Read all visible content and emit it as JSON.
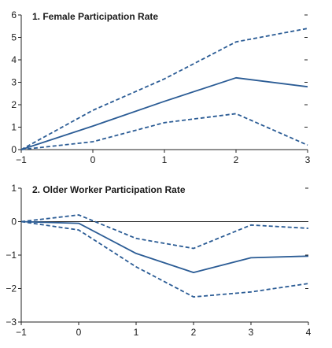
{
  "chart_data": [
    {
      "type": "line",
      "title": "1. Female Participation Rate",
      "xlabel": "",
      "ylabel": "",
      "x": [
        -1,
        0,
        1,
        2,
        3
      ],
      "xlim": [
        -1,
        3
      ],
      "ylim": [
        0,
        6
      ],
      "x_ticks": [
        -1,
        0,
        1,
        2,
        3
      ],
      "y_ticks": [
        0,
        1,
        2,
        3,
        4,
        5,
        6
      ],
      "zero_line": false,
      "grid": false,
      "series": [
        {
          "role": "upper",
          "style": "dashed",
          "values": [
            0,
            1.75,
            3.15,
            4.8,
            5.4
          ]
        },
        {
          "role": "estimate",
          "style": "solid",
          "values": [
            0,
            1.05,
            2.15,
            3.2,
            2.8
          ]
        },
        {
          "role": "lower",
          "style": "dashed",
          "values": [
            0,
            0.35,
            1.2,
            1.6,
            0.2
          ]
        }
      ]
    },
    {
      "type": "line",
      "title": "2. Older Worker Participation Rate",
      "xlabel": "",
      "ylabel": "",
      "x": [
        -1,
        0,
        1,
        2,
        3,
        4
      ],
      "xlim": [
        -1,
        4
      ],
      "ylim": [
        -3,
        1
      ],
      "x_ticks": [
        -1,
        0,
        1,
        2,
        3,
        4
      ],
      "y_ticks": [
        -3,
        -2,
        -1,
        0,
        1
      ],
      "zero_line": true,
      "grid": false,
      "series": [
        {
          "role": "upper",
          "style": "dashed",
          "values": [
            0,
            0.2,
            -0.5,
            -0.8,
            -0.1,
            -0.2
          ]
        },
        {
          "role": "estimate",
          "style": "solid",
          "values": [
            0,
            -0.05,
            -0.95,
            -1.52,
            -1.08,
            -1.03
          ]
        },
        {
          "role": "lower",
          "style": "dashed",
          "values": [
            0,
            -0.25,
            -1.35,
            -2.25,
            -2.1,
            -1.85
          ]
        }
      ]
    }
  ],
  "colors": {
    "line": "#2b5c95",
    "axis": "#222222",
    "zero_line": "#222222"
  }
}
